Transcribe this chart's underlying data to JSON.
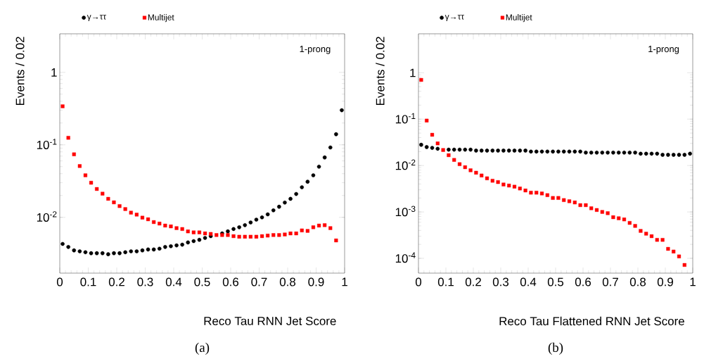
{
  "chart_data": [
    {
      "type": "scatter",
      "xlabel": "Reco Tau RNN Jet Score",
      "ylabel": "Events / 0.02",
      "annotations": [
        "1-prong",
        "(a)"
      ],
      "log": "y",
      "legend": "top",
      "xlim": [
        0,
        1
      ],
      "ylim": [
        0.0017,
        3.4
      ],
      "xticks": [
        0,
        0.1,
        0.2,
        0.3,
        0.4,
        0.5,
        0.6,
        0.7,
        0.8,
        0.9,
        1
      ],
      "yticks": [
        {
          "value": 0.01,
          "label": "10$^{-2}$"
        },
        {
          "value": 0.1,
          "label": "10$^{-1}$"
        },
        1
      ],
      "x": [
        0.01,
        0.03,
        0.05,
        0.07,
        0.09,
        0.11,
        0.13,
        0.15,
        0.17,
        0.19,
        0.21,
        0.23,
        0.25,
        0.27,
        0.29,
        0.31,
        0.33,
        0.35,
        0.37,
        0.39,
        0.41,
        0.43,
        0.45,
        0.47,
        0.49,
        0.51,
        0.53,
        0.55,
        0.57,
        0.59,
        0.61,
        0.63,
        0.65,
        0.67,
        0.69,
        0.71,
        0.73,
        0.75,
        0.77,
        0.79,
        0.81,
        0.83,
        0.85,
        0.87,
        0.89,
        0.91,
        0.93,
        0.95,
        0.97,
        0.99
      ],
      "series": [
        {
          "name": "γ→ττ",
          "color": "#000000",
          "marker": "circle",
          "values": [
            0.0043,
            0.0039,
            0.0035,
            0.0034,
            0.0033,
            0.0032,
            0.0032,
            0.0032,
            0.0031,
            0.0032,
            0.0032,
            0.0033,
            0.0034,
            0.0034,
            0.0035,
            0.0036,
            0.0036,
            0.0037,
            0.0039,
            0.004,
            0.0041,
            0.0042,
            0.0045,
            0.0047,
            0.0049,
            0.0052,
            0.0055,
            null,
            0.006,
            0.0064,
            0.0069,
            0.0073,
            0.0078,
            0.0085,
            0.0093,
            0.01,
            0.011,
            0.0125,
            0.014,
            0.016,
            0.018,
            0.021,
            0.026,
            0.031,
            0.038,
            0.05,
            0.067,
            0.092,
            0.14,
            0.3
          ]
        },
        {
          "name": "Multijet",
          "color": "#ff0000",
          "marker": "square",
          "values": [
            0.34,
            0.125,
            0.074,
            0.051,
            0.038,
            0.03,
            0.0246,
            0.0212,
            0.018,
            0.0161,
            0.0143,
            0.013,
            0.0116,
            0.0109,
            0.0099,
            0.0094,
            0.0086,
            0.0082,
            0.0077,
            0.0075,
            0.0071,
            0.0069,
            0.0064,
            0.0062,
            0.0062,
            0.006,
            0.0059,
            0.0057,
            0.0057,
            0.0057,
            0.0055,
            0.0054,
            0.0054,
            0.0054,
            0.0054,
            0.0055,
            0.0056,
            0.0057,
            0.0057,
            0.0058,
            0.006,
            0.006,
            0.0066,
            0.0065,
            0.0073,
            0.0077,
            0.0078,
            0.0071,
            0.0048,
            null
          ]
        }
      ]
    },
    {
      "type": "scatter",
      "xlabel": "Reco Tau Flattened RNN Jet Score",
      "ylabel": "Events / 0.02",
      "annotations": [
        "1-prong",
        "(b)"
      ],
      "log": "y",
      "legend": "top",
      "xlim": [
        0,
        1
      ],
      "ylim": [
        4.8e-05,
        6.9
      ],
      "xticks": [
        0,
        0.1,
        0.2,
        0.3,
        0.4,
        0.5,
        0.6,
        0.7,
        0.8,
        0.9,
        1
      ],
      "yticks": [
        {
          "value": 0.0001,
          "label": "10$^{-4}$"
        },
        {
          "value": 0.001,
          "label": "10$^{-3}$"
        },
        {
          "value": 0.01,
          "label": "10$^{-2}$"
        },
        {
          "value": 0.1,
          "label": "10$^{-1}$"
        },
        1
      ],
      "x": [
        0.01,
        0.03,
        0.05,
        0.07,
        0.09,
        0.11,
        0.13,
        0.15,
        0.17,
        0.19,
        0.21,
        0.23,
        0.25,
        0.27,
        0.29,
        0.31,
        0.33,
        0.35,
        0.37,
        0.39,
        0.41,
        0.43,
        0.45,
        0.47,
        0.49,
        0.51,
        0.53,
        0.55,
        0.57,
        0.59,
        0.61,
        0.63,
        0.65,
        0.67,
        0.69,
        0.71,
        0.73,
        0.75,
        0.77,
        0.79,
        0.81,
        0.83,
        0.85,
        0.87,
        0.89,
        0.91,
        0.93,
        0.95,
        0.97,
        0.99
      ],
      "series": [
        {
          "name": "γ→ττ",
          "color": "#000000",
          "marker": "circle",
          "values": [
            0.028,
            0.025,
            0.024,
            0.023,
            null,
            0.022,
            0.022,
            0.022,
            0.022,
            0.022,
            0.021,
            0.021,
            0.021,
            0.021,
            0.021,
            0.021,
            0.021,
            0.021,
            0.021,
            0.021,
            0.02,
            0.02,
            0.02,
            0.02,
            0.02,
            0.02,
            0.02,
            0.02,
            0.02,
            0.02,
            0.019,
            0.019,
            0.019,
            0.019,
            0.019,
            0.019,
            0.019,
            0.019,
            0.019,
            0.019,
            0.018,
            0.018,
            0.018,
            0.018,
            0.017,
            0.017,
            0.017,
            0.017,
            0.017,
            0.018
          ]
        },
        {
          "name": "Multijet",
          "color": "#ff0000",
          "marker": "square",
          "values": [
            0.7,
            0.093,
            0.046,
            0.03,
            0.0216,
            0.0167,
            0.0132,
            0.0107,
            0.0092,
            0.0079,
            0.007,
            0.0061,
            0.0053,
            0.0047,
            0.0044,
            0.0039,
            0.0037,
            0.0035,
            0.0032,
            0.0029,
            0.0026,
            0.0026,
            0.0025,
            0.0023,
            0.002,
            0.002,
            0.0018,
            0.0017,
            0.0016,
            0.0014,
            0.0014,
            0.0012,
            0.0011,
            0.001,
            0.00094,
            0.00077,
            0.00073,
            0.00069,
            0.00058,
            0.0005,
            0.00039,
            0.00034,
            0.0003,
            0.00025,
            0.00025,
            0.00016,
            0.00014,
            0.00011,
            7.2e-05,
            null
          ]
        }
      ]
    }
  ]
}
